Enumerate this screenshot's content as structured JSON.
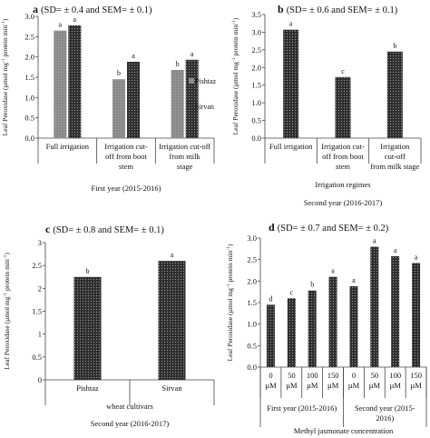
{
  "chart_data": [
    {
      "panel": "a",
      "type": "bar",
      "title": "(SD= ± 0.4 and SEM= ± 0.1)",
      "ylabel": "Leaf Peroxidase (µmol mg-1 protein min-1)",
      "ylim": [
        0,
        3.0
      ],
      "yticks": [
        "0.0",
        "0.5",
        "1.0",
        "1.5",
        "2.0",
        "2.5",
        "3.0"
      ],
      "categories": [
        "Full irrigation",
        "Irrigation cut-off from boot stem",
        "Irrigation cut-off from milk stage"
      ],
      "xlines": [
        [
          "Full irrigation"
        ],
        [
          "Irrigation cut-",
          "off from boot",
          "stem"
        ],
        [
          "Irrigation cut-off",
          "from milk",
          "stage"
        ]
      ],
      "xsub": "First year (2015-2016)",
      "series": [
        {
          "name": "Pishtaz",
          "values": [
            2.65,
            1.45,
            1.68
          ],
          "letters": [
            "a",
            "b",
            "b"
          ],
          "color": "#8c8c8c"
        },
        {
          "name": "Sirvan",
          "values": [
            2.78,
            1.88,
            1.93
          ],
          "letters": [
            "a",
            "a",
            "a"
          ],
          "color": "#3a3a3a"
        }
      ],
      "legend": "right"
    },
    {
      "panel": "b",
      "type": "bar",
      "title": "(SD= ± 0.6 and SEM= ± 0.1)",
      "ylabel": "Leaf Peroxidase (µmol mg-1 protein min-1)",
      "ylim": [
        0,
        3.5
      ],
      "yticks": [
        "0.0",
        "0.5",
        "1.0",
        "1.5",
        "2.0",
        "2.5",
        "3.0",
        "3.5"
      ],
      "categories": [
        "Full irrigation",
        "Irrigation cut-off from boot stem",
        "Irrigation cut-off from milk stage"
      ],
      "xlines": [
        [
          "Full irrigation"
        ],
        [
          "Irrigation cut-",
          "off from  boot",
          "stem"
        ],
        [
          "Irrigation",
          "cut-off",
          "from milk stage"
        ]
      ],
      "xsub": [
        "Irrigation regimes",
        "Second year (2016-2017)"
      ],
      "series": [
        {
          "values": [
            3.07,
            1.73,
            2.45
          ],
          "letters": [
            "a",
            "c",
            "b"
          ],
          "color": "#3a3a3a"
        }
      ]
    },
    {
      "panel": "c",
      "type": "bar",
      "title": "(SD= ± 0.8 and SEM= ± 0.1)",
      "ylabel": "Leaf Peroxidase (µmol mg-1 protein min-1)",
      "ylim": [
        0,
        3.0
      ],
      "yticks": [
        "0",
        "0.5",
        "1",
        "1.5",
        "2",
        "2.5",
        "3"
      ],
      "categories": [
        "Pishtaz",
        "Sirvan"
      ],
      "xlines": [
        [
          "Pishtaz"
        ],
        [
          "Sirvan"
        ]
      ],
      "xsub": [
        "wheat cultivars",
        "Second year (2016-2017)"
      ],
      "series": [
        {
          "values": [
            2.25,
            2.6
          ],
          "letters": [
            "b",
            "a"
          ],
          "color": "#3a3a3a"
        }
      ]
    },
    {
      "panel": "d",
      "type": "bar",
      "title": "(SD= ± 0.7 and SEM= ± 0.2)",
      "ylabel": "Leaf Peroxidase (µmol mg-1 protein min-1)",
      "ylim": [
        0,
        3.0
      ],
      "yticks": [
        "0.0",
        "0.5",
        "1.0",
        "1.5",
        "2.0",
        "2.5",
        "3.0"
      ],
      "categories": [
        "0 µM",
        "50 µM",
        "100 µM",
        "150 µM",
        "0 µM",
        "50 µM",
        "100 µM",
        "150 µM"
      ],
      "xlines": [
        [
          "0",
          "µM"
        ],
        [
          "50",
          "µM"
        ],
        [
          "100",
          "µM"
        ],
        [
          "150",
          "µM"
        ],
        [
          "0",
          "µM"
        ],
        [
          "50",
          "µM"
        ],
        [
          "100",
          "µM"
        ],
        [
          "150",
          "µM"
        ]
      ],
      "groups": [
        "First year (2015-2016)",
        "Second year (2015-2016)"
      ],
      "xsub": "Methyl jasmonate concentration",
      "series": [
        {
          "values": [
            1.45,
            1.6,
            1.78,
            2.1,
            1.88,
            2.8,
            2.58,
            2.42
          ],
          "letters": [
            "d",
            "c",
            "b",
            "a",
            "a",
            "a",
            "a",
            "a"
          ],
          "color": "#3a3a3a"
        }
      ]
    }
  ]
}
